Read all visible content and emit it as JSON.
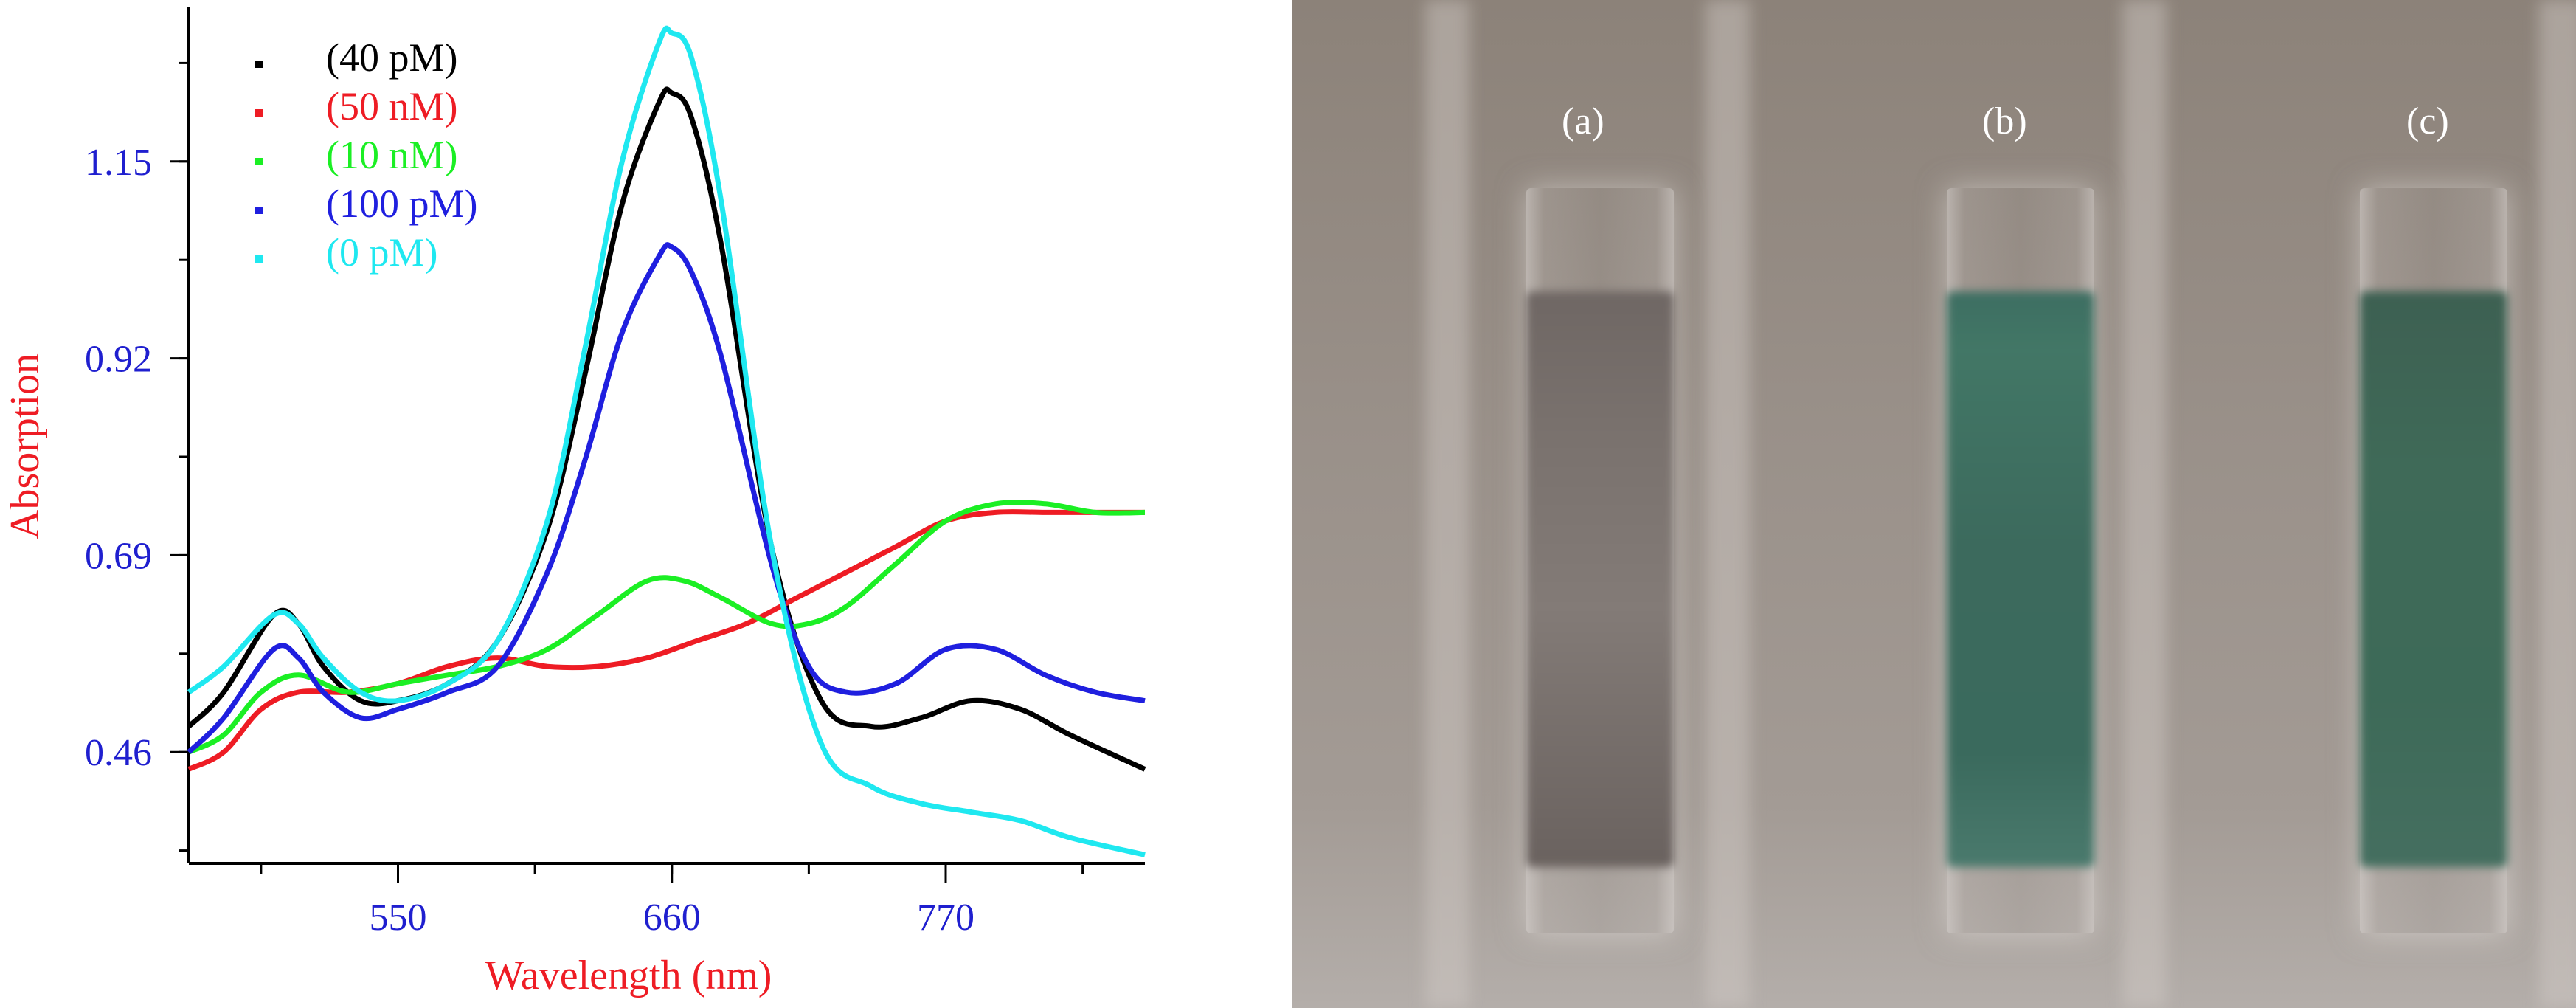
{
  "chart_data": {
    "type": "line",
    "xlabel": "Wavelength (nm)",
    "ylabel": "Absorption",
    "xticks": [
      550,
      660,
      770
    ],
    "yticks": [
      0.46,
      0.69,
      0.92,
      1.15
    ],
    "xlim": [
      466,
      850
    ],
    "ylim": [
      0.33,
      1.33
    ],
    "legend_position": "top-left",
    "colors": {
      "axis_label_x": "#ee1c24",
      "axis_label_y": "#ee1c24",
      "tick_labels": "#1f1fcf",
      "axis": "#000000"
    },
    "series": [
      {
        "name": "(40 pM)",
        "color": "#000000",
        "x": [
          466,
          480,
          500,
          510,
          520,
          535,
          550,
          570,
          590,
          610,
          625,
          640,
          655,
          660,
          668,
          680,
          700,
          720,
          740,
          760,
          780,
          800,
          820,
          850
        ],
        "y": [
          0.49,
          0.53,
          0.62,
          0.61,
          0.56,
          0.52,
          0.52,
          0.54,
          0.59,
          0.72,
          0.9,
          1.1,
          1.22,
          1.23,
          1.2,
          1.05,
          0.7,
          0.52,
          0.49,
          0.5,
          0.52,
          0.51,
          0.48,
          0.44
        ]
      },
      {
        "name": "(50 nM)",
        "color": "#ee1c24",
        "x": [
          466,
          480,
          495,
          510,
          530,
          550,
          570,
          590,
          610,
          630,
          650,
          670,
          690,
          710,
          730,
          750,
          770,
          790,
          810,
          830,
          850
        ],
        "y": [
          0.44,
          0.46,
          0.51,
          0.53,
          0.53,
          0.54,
          0.56,
          0.57,
          0.56,
          0.56,
          0.57,
          0.59,
          0.61,
          0.64,
          0.67,
          0.7,
          0.73,
          0.74,
          0.74,
          0.74,
          0.74
        ]
      },
      {
        "name": "(10 nM)",
        "color": "#1bef24",
        "x": [
          466,
          480,
          495,
          510,
          530,
          550,
          570,
          590,
          610,
          630,
          650,
          665,
          680,
          700,
          715,
          730,
          750,
          770,
          790,
          810,
          830,
          850
        ],
        "y": [
          0.46,
          0.48,
          0.53,
          0.55,
          0.53,
          0.54,
          0.55,
          0.56,
          0.58,
          0.62,
          0.66,
          0.66,
          0.64,
          0.61,
          0.61,
          0.63,
          0.68,
          0.73,
          0.75,
          0.75,
          0.74,
          0.74
        ]
      },
      {
        "name": "(100 pM)",
        "color": "#1f1fdf",
        "x": [
          466,
          480,
          500,
          510,
          520,
          535,
          550,
          570,
          590,
          610,
          625,
          640,
          655,
          660,
          668,
          680,
          700,
          715,
          730,
          750,
          770,
          790,
          810,
          830,
          850
        ],
        "y": [
          0.46,
          0.5,
          0.58,
          0.57,
          0.53,
          0.5,
          0.51,
          0.53,
          0.56,
          0.67,
          0.8,
          0.95,
          1.04,
          1.05,
          1.02,
          0.92,
          0.68,
          0.56,
          0.53,
          0.54,
          0.58,
          0.58,
          0.55,
          0.53,
          0.52
        ]
      },
      {
        "name": "(0 pM)",
        "color": "#1fe8f0",
        "x": [
          466,
          480,
          500,
          510,
          520,
          535,
          550,
          570,
          590,
          610,
          625,
          640,
          655,
          660,
          668,
          680,
          700,
          720,
          740,
          760,
          780,
          800,
          820,
          850
        ],
        "y": [
          0.53,
          0.56,
          0.62,
          0.61,
          0.57,
          0.53,
          0.52,
          0.54,
          0.59,
          0.73,
          0.93,
          1.15,
          1.29,
          1.3,
          1.27,
          1.1,
          0.7,
          0.47,
          0.42,
          0.4,
          0.39,
          0.38,
          0.36,
          0.34
        ]
      }
    ]
  },
  "photo": {
    "labels": [
      "(a)",
      "(b)",
      "(c)"
    ]
  }
}
